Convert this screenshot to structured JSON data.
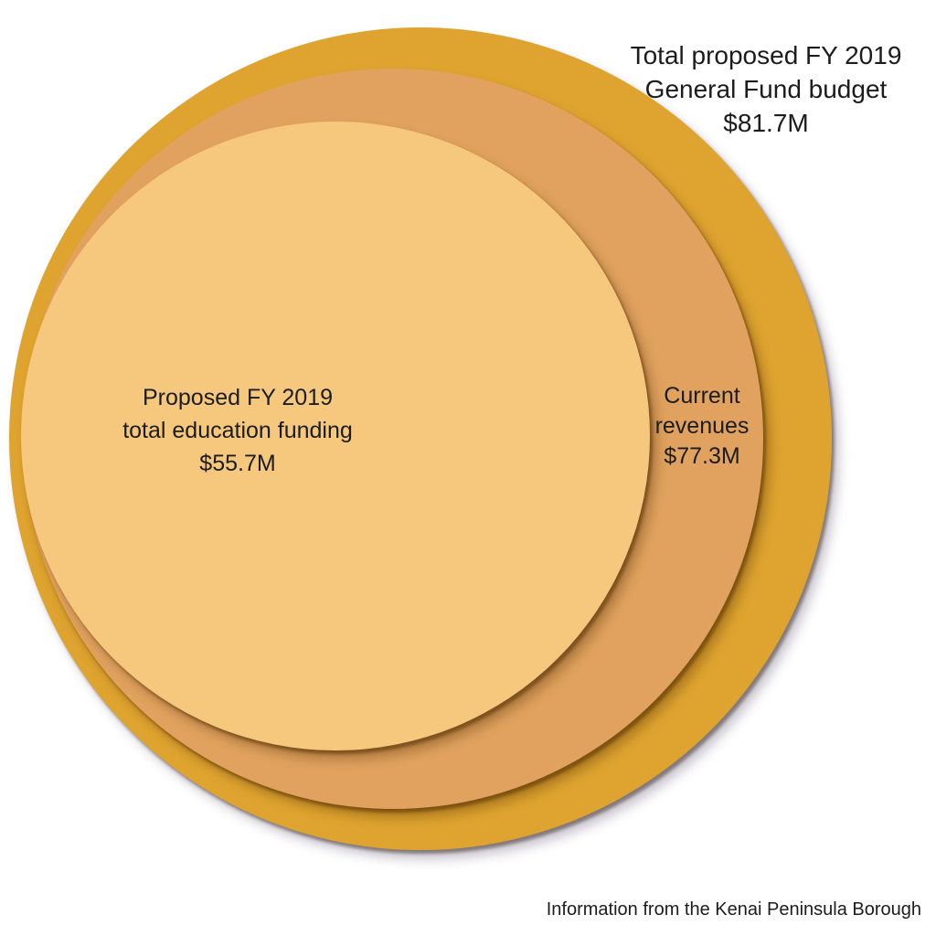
{
  "chart_data": {
    "type": "pie",
    "variant": "nested-proportional-circles",
    "title": "",
    "legend_position": "none",
    "grid": false,
    "unit": "million USD",
    "series": [
      {
        "name": "Total proposed FY 2019 General Fund budget",
        "value": 81.7,
        "value_label": "$81.7M",
        "color": "#DFA42F",
        "label_lines": [
          "Total proposed FY 2019",
          "General Fund budget",
          "$81.7M"
        ]
      },
      {
        "name": "Current revenues",
        "value": 77.3,
        "value_label": "$77.3M",
        "color": "#E0A25E",
        "label_lines": [
          "Current",
          "revenues",
          "$77.3M"
        ]
      },
      {
        "name": "Proposed FY 2019 total education funding",
        "value": 55.7,
        "value_label": "$55.7M",
        "color": "#F5C87D",
        "label_lines": [
          "Proposed FY 2019",
          "total education funding",
          "$55.7M"
        ]
      }
    ],
    "source": "Information from the Kenai Peninsula Borough",
    "text_color": "#1c1c1c",
    "background_color": "#ffffff"
  }
}
